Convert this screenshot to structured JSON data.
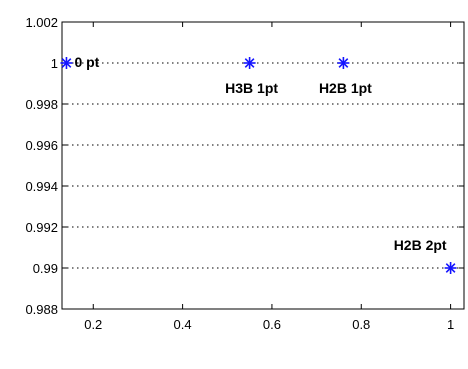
{
  "chart_data": {
    "type": "scatter",
    "title": "",
    "xlabel": "",
    "ylabel": "",
    "xlim": [
      0.13,
      1.03
    ],
    "ylim": [
      0.988,
      1.002
    ],
    "grid": "y-dotted",
    "marker": "asterisk",
    "colors": {
      "marker": "#1414ff",
      "axis": "#000000",
      "grid": "#000000",
      "background": "#ffffff"
    },
    "x_ticks": [
      {
        "value": 0.2,
        "label": "0.2"
      },
      {
        "value": 0.4,
        "label": "0.4"
      },
      {
        "value": 0.6,
        "label": "0.6"
      },
      {
        "value": 0.8,
        "label": "0.8"
      },
      {
        "value": 1.0,
        "label": "1"
      }
    ],
    "y_ticks": [
      {
        "value": 0.988,
        "label": "0.988"
      },
      {
        "value": 0.99,
        "label": "0.99"
      },
      {
        "value": 0.992,
        "label": "0.992"
      },
      {
        "value": 0.994,
        "label": "0.994"
      },
      {
        "value": 0.996,
        "label": "0.996"
      },
      {
        "value": 0.998,
        "label": "0.998"
      },
      {
        "value": 1.0,
        "label": "1"
      },
      {
        "value": 1.002,
        "label": "1.002"
      }
    ],
    "points": [
      {
        "x": 0.14,
        "y": 1.0,
        "label": "0 pt",
        "label_pos": "right"
      },
      {
        "x": 0.55,
        "y": 1.0,
        "label": "H3B 1pt",
        "label_pos": "below"
      },
      {
        "x": 0.76,
        "y": 1.0,
        "label": "H2B 1pt",
        "label_pos": "below"
      },
      {
        "x": 1.0,
        "y": 0.99,
        "label": "H2B 2pt",
        "label_pos": "above-left"
      }
    ]
  }
}
